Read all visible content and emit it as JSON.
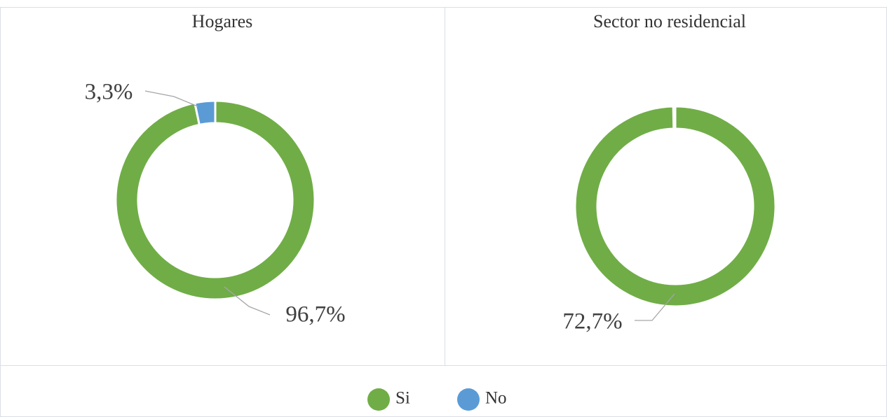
{
  "chart_data": [
    {
      "type": "donut",
      "title": "Hogares",
      "categories": [
        "Si",
        "No"
      ],
      "colors": [
        "#70ad47",
        "#5b9bd5"
      ],
      "values": [
        96.7,
        3.3
      ],
      "value_labels": [
        "96,7%",
        "3,3%"
      ]
    },
    {
      "type": "donut",
      "title": "Sector no residencial",
      "categories": [
        "Si",
        "No"
      ],
      "colors": [
        "#70ad47",
        "#5b9bd5"
      ],
      "values": [
        72.7,
        null
      ],
      "value_labels": [
        "72,7%",
        null
      ]
    }
  ]
}
